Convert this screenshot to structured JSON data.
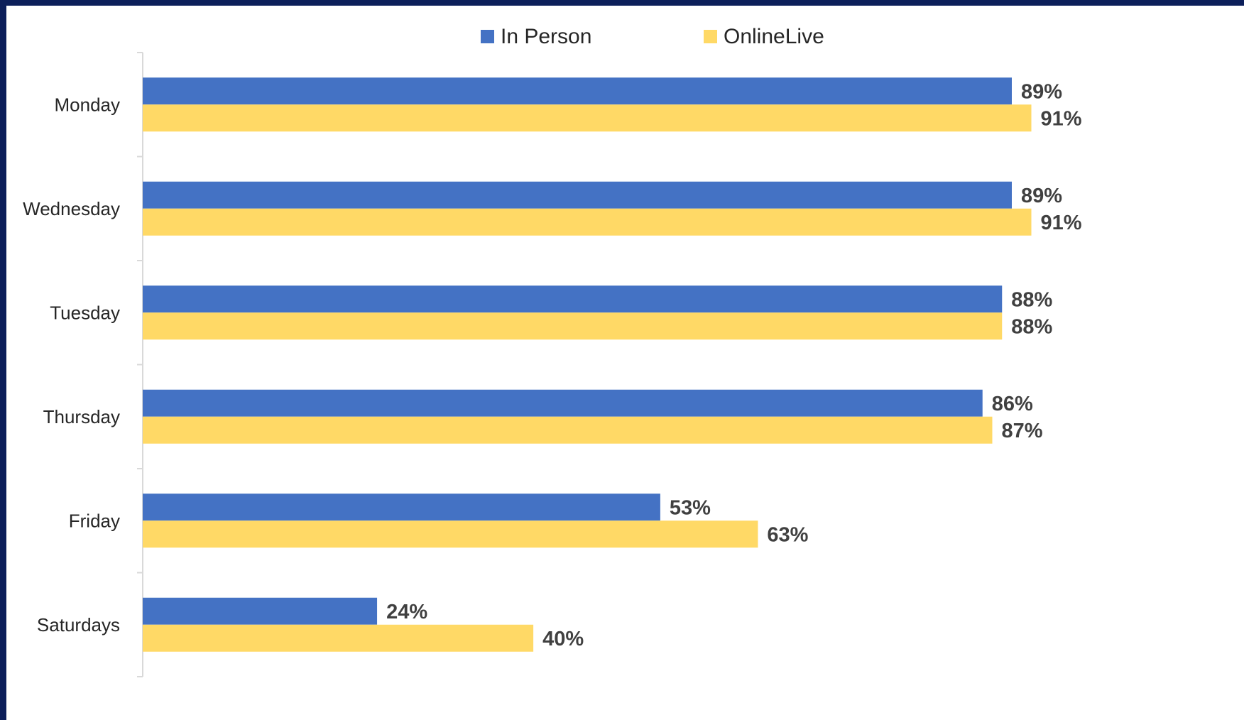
{
  "chart_data": {
    "type": "bar",
    "orientation": "horizontal",
    "categories": [
      "Monday",
      "Wednesday",
      "Tuesday",
      "Thursday",
      "Friday",
      "Saturdays"
    ],
    "series": [
      {
        "name": "In Person",
        "values": [
          89,
          89,
          88,
          86,
          53,
          24
        ],
        "labels": [
          "89%",
          "89%",
          "88%",
          "86%",
          "53%",
          "24%"
        ]
      },
      {
        "name": "OnlineLive",
        "values": [
          91,
          91,
          88,
          87,
          63,
          40
        ],
        "labels": [
          "91%",
          "91%",
          "88%",
          "87%",
          "63%",
          "40%"
        ]
      }
    ],
    "xlim": [
      0,
      100
    ],
    "legend_position": "top",
    "grid": false,
    "value_axis_visible": false
  },
  "colors": {
    "in_person": "#4472C4",
    "online_live": "#FFD966",
    "axis": "#d9d9d9",
    "frame": "#0c1f5a"
  }
}
